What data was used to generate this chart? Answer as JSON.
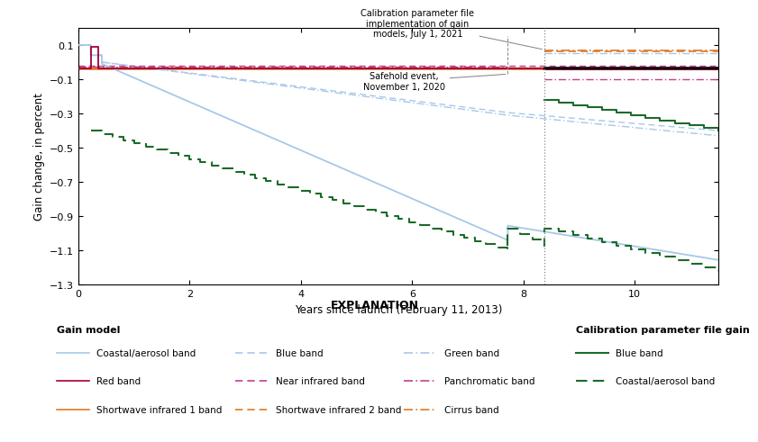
{
  "xlabel": "Years since launch (February 11, 2013)",
  "ylabel": "Gain change, in percent",
  "xlim": [
    0,
    11.5
  ],
  "ylim": [
    -1.3,
    0.2
  ],
  "yticks": [
    0.1,
    -0.1,
    -0.3,
    -0.5,
    -0.7,
    -0.9,
    -1.1,
    -1.3
  ],
  "xticks": [
    0,
    2,
    4,
    6,
    8,
    10
  ],
  "vline_x": 8.38,
  "safehold_x": 7.72,
  "annotation_top": "Calibration parameter file\nimplementation of gain\nmodels, July 1, 2021",
  "annotation_bottom": "Safehold event,\nNovember 1, 2020",
  "colors": {
    "coastal_aerosol": "#a8c8e8",
    "red_band": "#a0003a",
    "swir1": "#e07820",
    "blue_dashed": "#a8c8e8",
    "green_dashdot": "#a8c8e8",
    "nir_dashed": "#c04090",
    "swir2_dashed": "#e07820",
    "pan_dashdot": "#c04090",
    "cirrus_dashdot": "#e07820",
    "cpf_blue_solid": "#1a6b2a",
    "cpf_ca_dashed": "#1a6b2a",
    "vline": "#808080",
    "black": "#000000",
    "dark_magenta": "#7b003a",
    "cpf_swir2_dashed": "#e07820",
    "cpf_cirrus_dashdot": "#e07820",
    "cpf_green_dashdot": "#a8c8e8",
    "cpf_swir1": "#e07820",
    "cpf_nir_dashed": "#c04090",
    "cpf_pan_dashdot": "#c04090"
  },
  "explanation_title": "EXPLANATION",
  "gain_model_title": "Gain model",
  "cpf_gain_title": "Calibration parameter file gain"
}
